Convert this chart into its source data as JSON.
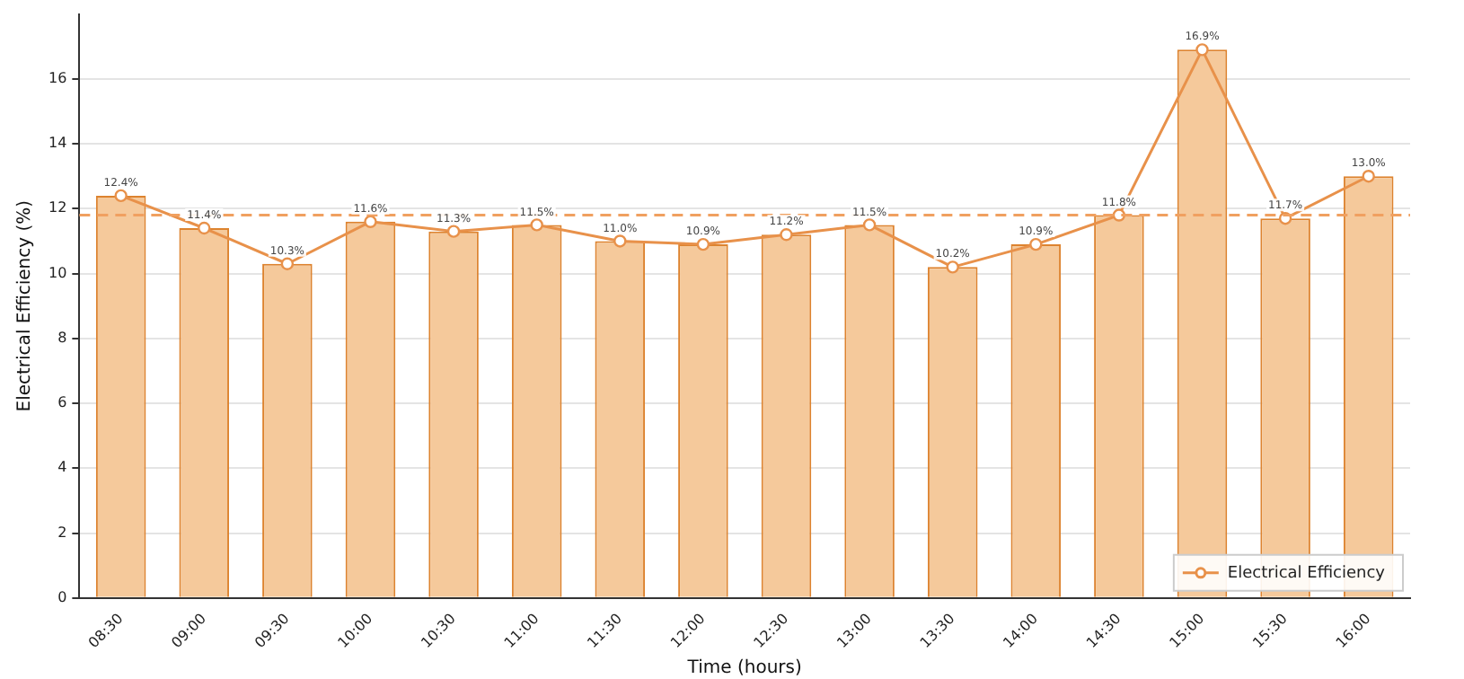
{
  "chart_data": {
    "type": "bar",
    "xlabel": "Time (hours)",
    "ylabel": "Electrical Efficiency (%)",
    "categories": [
      "08:30",
      "09:00",
      "09:30",
      "10:00",
      "10:30",
      "11:00",
      "11:30",
      "12:00",
      "12:30",
      "13:00",
      "13:30",
      "14:00",
      "14:30",
      "15:00",
      "15:30",
      "16:00"
    ],
    "series": [
      {
        "color": "#f5c99b",
        "values": [
          12.4,
          11.4,
          10.3,
          11.6,
          11.3,
          11.5,
          11.0,
          10.9,
          11.2,
          11.5,
          10.2,
          10.9,
          11.8,
          16.9,
          11.7,
          13.0
        ],
        "value_labels": [
          "12.4%",
          "11.4%",
          "10.3%",
          "11.6%",
          "11.3%",
          "11.5%",
          "11.0%",
          "10.9%",
          "11.2%",
          "11.5%",
          "10.2%",
          "10.9%",
          "11.8%",
          "16.9%",
          "11.7%",
          "13.0%"
        ]
      },
      {
        "type": "line",
        "name": "Electrical Efficiency",
        "color": "#e8914a",
        "values": [
          12.4,
          11.4,
          10.3,
          11.6,
          11.3,
          11.5,
          11.0,
          10.9,
          11.2,
          11.5,
          10.2,
          10.9,
          11.8,
          16.9,
          11.7,
          13.0
        ]
      }
    ],
    "ylim": [
      0,
      18
    ],
    "yticks": [
      0,
      2,
      4,
      6,
      8,
      10,
      12,
      14,
      16
    ],
    "grid": "y",
    "legend": "bottom right",
    "marker": "circle",
    "line_style": "solid",
    "ref_lines": [
      {
        "axis": "y",
        "value": 11.8,
        "color": "#f0a060",
        "line_style": "dashed"
      }
    ]
  }
}
